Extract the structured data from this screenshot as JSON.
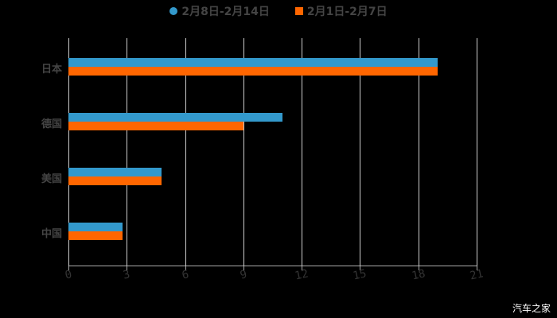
{
  "chart_data": {
    "type": "bar",
    "orientation": "horizontal",
    "title": "",
    "categories": [
      "日本",
      "德国",
      "美国",
      "中国"
    ],
    "series": [
      {
        "name": "2月8日-2月14日",
        "color": "#3399cc",
        "values": [
          19,
          11,
          4.8,
          2.8
        ]
      },
      {
        "name": "2月1日-2月7日",
        "color": "#ff6600",
        "values": [
          19,
          9,
          4.8,
          2.8
        ]
      }
    ],
    "xlim": [
      0,
      21
    ],
    "xticks": [
      0,
      3,
      6,
      9,
      12,
      15,
      18,
      21
    ],
    "grid": true,
    "legend_position": "top"
  },
  "legend": {
    "items": [
      {
        "label": "2月8日-2月14日",
        "color": "#3399cc",
        "shape": "circle"
      },
      {
        "label": "2月1日-2月7日",
        "color": "#ff6600",
        "shape": "square"
      }
    ]
  },
  "watermark": "汽车之家"
}
